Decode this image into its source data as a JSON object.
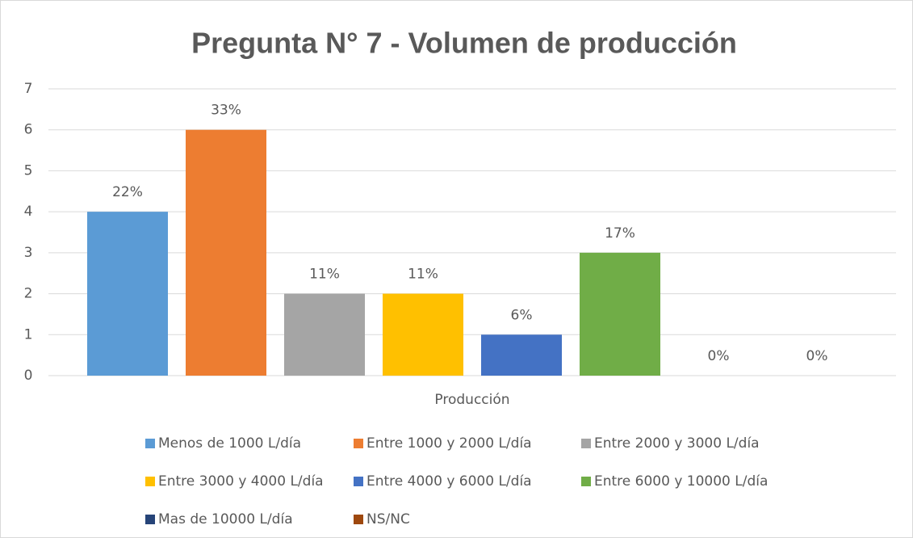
{
  "chart_data": {
    "type": "bar",
    "title": "Pregunta N° 7 - Volumen de producción",
    "categories": [
      "Producción"
    ],
    "series": [
      {
        "name": "Menos de 1000 L/día",
        "color": "#5b9bd5",
        "values": [
          4
        ],
        "data_label": "22%"
      },
      {
        "name": "Entre 1000 y 2000 L/día",
        "color": "#ed7d31",
        "values": [
          6
        ],
        "data_label": "33%"
      },
      {
        "name": "Entre 2000 y 3000 L/día",
        "color": "#a5a5a5",
        "values": [
          2
        ],
        "data_label": "11%"
      },
      {
        "name": "Entre 3000 y 4000 L/día",
        "color": "#ffc000",
        "values": [
          2
        ],
        "data_label": "11%"
      },
      {
        "name": "Entre 4000 y 6000 L/día",
        "color": "#4472c4",
        "values": [
          1
        ],
        "data_label": "6%"
      },
      {
        "name": "Entre 6000 y 10000 L/día",
        "color": "#70ad47",
        "values": [
          3
        ],
        "data_label": "17%"
      },
      {
        "name": "Mas de 10000 L/día",
        "color": "#264478",
        "values": [
          0
        ],
        "data_label": "0%"
      },
      {
        "name": "NS/NC",
        "color": "#9e480e",
        "values": [
          0
        ],
        "data_label": "0%"
      }
    ],
    "ylim": [
      0,
      7
    ],
    "yticks": [
      0,
      1,
      2,
      3,
      4,
      5,
      6,
      7
    ],
    "grid": true,
    "legend": "bottom"
  }
}
